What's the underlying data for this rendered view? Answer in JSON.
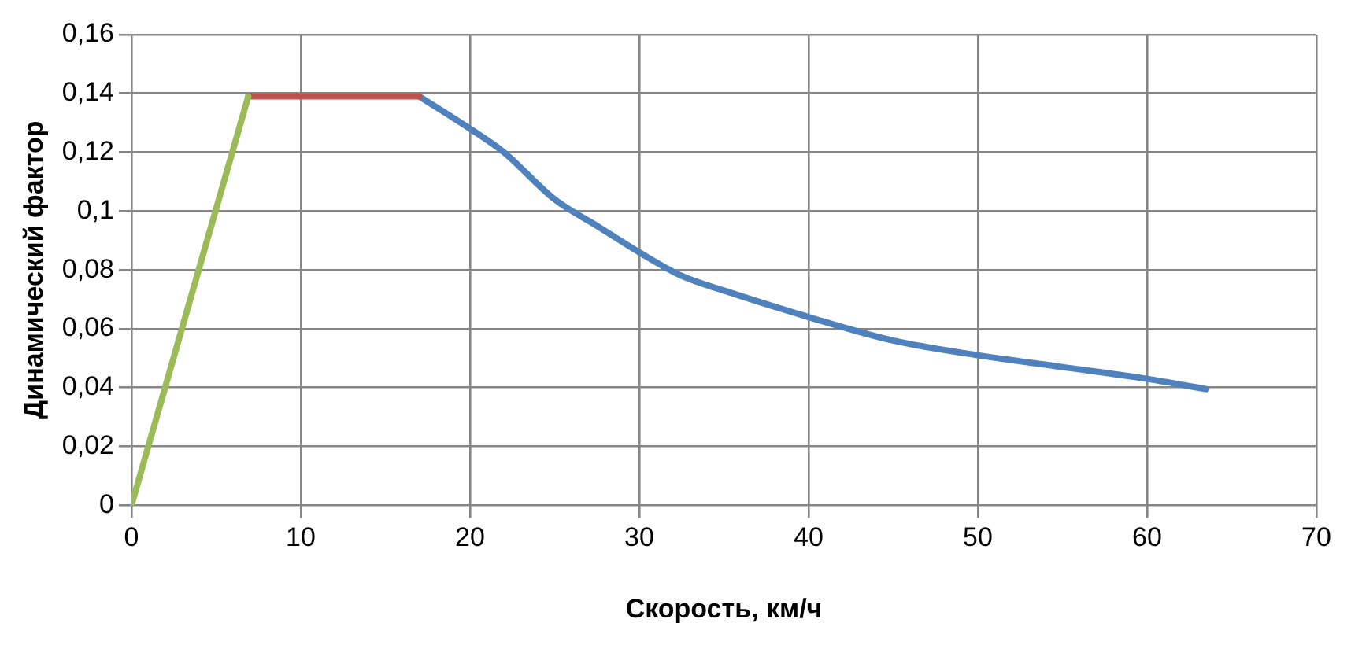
{
  "chart_data": {
    "type": "line",
    "xlabel": "Скорость, км/ч",
    "ylabel": "Динамический фактор",
    "xlim": [
      0,
      70
    ],
    "xticks": [
      0,
      10,
      20,
      30,
      40,
      50,
      60,
      70
    ],
    "ylim": [
      0,
      0.16
    ],
    "yticks": [
      {
        "value": 0,
        "label": "0"
      },
      {
        "value": 0.02,
        "label": "0,02"
      },
      {
        "value": 0.04,
        "label": "0,04"
      },
      {
        "value": 0.06,
        "label": "0,06"
      },
      {
        "value": 0.08,
        "label": "0,08"
      },
      {
        "value": 0.1,
        "label": "0,1"
      },
      {
        "value": 0.12,
        "label": "0,12"
      },
      {
        "value": 0.14,
        "label": "0,14"
      },
      {
        "value": 0.16,
        "label": "0,16"
      }
    ],
    "grid": true,
    "marker": "none",
    "legend": false,
    "series": [
      {
        "color": "#9bbb59",
        "x": [
          0,
          6.9
        ],
        "values": [
          0,
          0.139
        ]
      },
      {
        "color": "#c0504d",
        "x": [
          6.9,
          17
        ],
        "values": [
          0.139,
          0.139
        ]
      },
      {
        "color": "#4f81bd",
        "x": [
          17,
          20,
          22,
          25,
          27.5,
          30,
          32.5,
          35,
          40,
          45,
          50,
          55,
          60,
          63.5
        ],
        "values": [
          0.139,
          0.128,
          0.12,
          0.104,
          0.095,
          0.086,
          0.078,
          0.073,
          0.064,
          0.056,
          0.051,
          0.047,
          0.043,
          0.0395
        ]
      }
    ]
  }
}
